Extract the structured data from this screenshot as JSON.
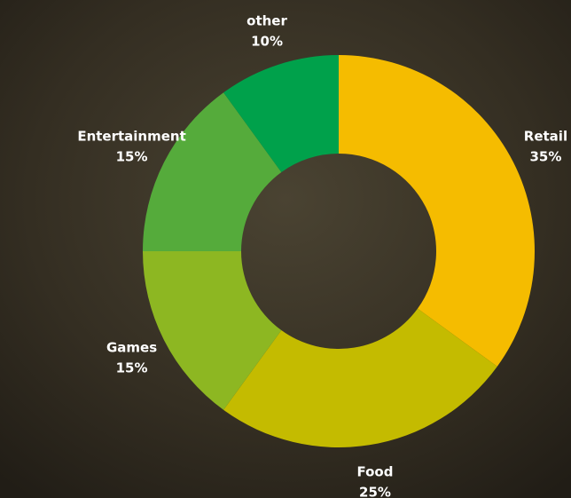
{
  "chart_data": {
    "type": "donut",
    "categories": [
      "Retail",
      "Food",
      "Games",
      "Entertainment",
      "other"
    ],
    "values": [
      35,
      25,
      15,
      15,
      10
    ],
    "value_labels": [
      "35%",
      "25%",
      "15%",
      "15%",
      "10%"
    ],
    "colors": [
      "#f5bc00",
      "#c4bb00",
      "#8db722",
      "#55ab3b",
      "#00a14b"
    ]
  }
}
